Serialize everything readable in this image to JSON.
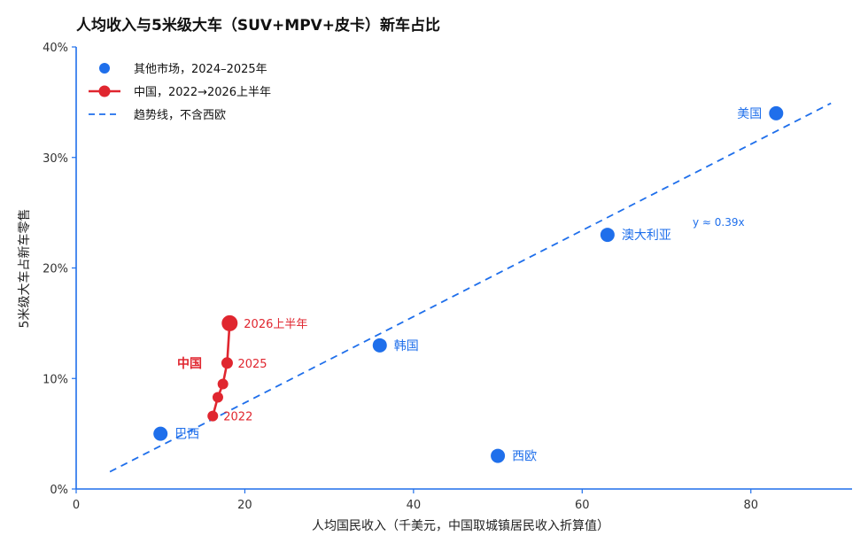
{
  "chart_data": {
    "type": "scatter",
    "title": "人均收入与5米级大车（SUV+MPV+皮卡）新车占比",
    "xlabel": "人均国民收入（千美元，中国取城镇居民收入折算值）",
    "ylabel": "5米级大车占新车零售",
    "xlim": [
      0,
      92
    ],
    "ylim": [
      0,
      40
    ],
    "x_ticks": [
      0,
      20,
      40,
      60,
      80
    ],
    "y_ticks": [
      0,
      10,
      20,
      30,
      40
    ],
    "y_tick_labels": [
      "0%",
      "10%",
      "20%",
      "30%",
      "40%"
    ],
    "grid": false,
    "legend_position": "top-left",
    "legend": [
      "其他市场，2024–2025年",
      "中国，2022→2026上半年",
      "趋势线，不含西欧"
    ],
    "colors": {
      "other": "#1f6feb",
      "china": "#e0262f"
    },
    "series": [
      {
        "name": "其他市场，2024–2025年",
        "points": [
          {
            "label": "巴西",
            "x": 10,
            "y": 5
          },
          {
            "label": "韩国",
            "x": 36,
            "y": 13
          },
          {
            "label": "西欧",
            "x": 50,
            "y": 3
          },
          {
            "label": "澳大利亚",
            "x": 63,
            "y": 23
          },
          {
            "label": "美国",
            "x": 83,
            "y": 34
          }
        ]
      },
      {
        "name": "中国，2022→2026上半年",
        "series_label": "中国",
        "points": [
          {
            "label": "2022",
            "x": 16.2,
            "y": 6.6
          },
          {
            "label": "",
            "x": 16.8,
            "y": 8.3
          },
          {
            "label": "",
            "x": 17.4,
            "y": 9.5
          },
          {
            "label": "2025",
            "x": 17.9,
            "y": 11.4
          },
          {
            "label": "2026上半年",
            "x": 18.2,
            "y": 15.0
          }
        ]
      }
    ],
    "trendline": {
      "slope": 0.39,
      "x_start": 4,
      "x_end": 89.5,
      "label": "y ≈ 0.39x"
    }
  }
}
